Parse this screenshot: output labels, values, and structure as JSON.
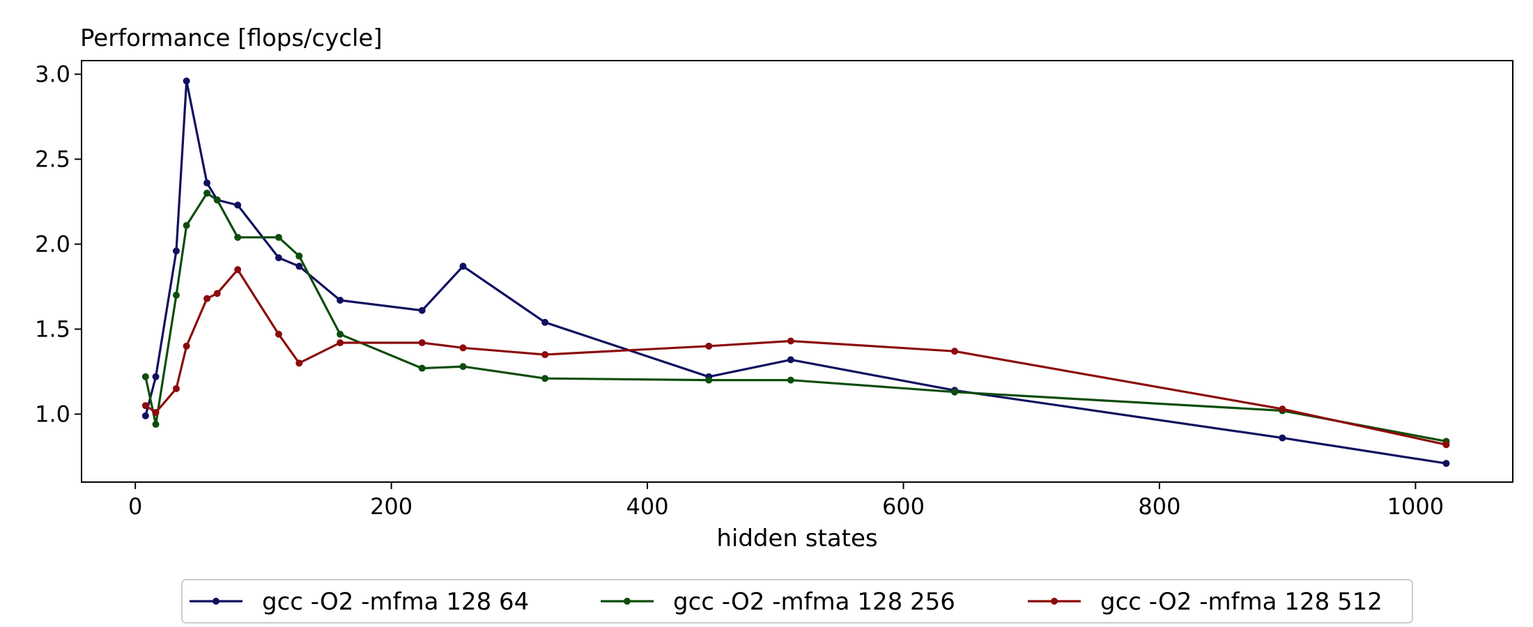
{
  "chart_data": {
    "type": "line",
    "title": "",
    "ylabel": "Performance [flops/cycle]",
    "xlabel": "hidden states",
    "xlim": [
      -42,
      1076
    ],
    "ylim": [
      0.6,
      3.08
    ],
    "xticks": [
      0,
      200,
      400,
      600,
      800,
      1000
    ],
    "yticks": [
      1.0,
      1.5,
      2.0,
      2.5,
      3.0
    ],
    "xtick_labels": [
      "0",
      "200",
      "400",
      "600",
      "800",
      "1000"
    ],
    "ytick_labels": [
      "1.0",
      "1.5",
      "2.0",
      "2.5",
      "3.0"
    ],
    "grid": false,
    "legend_position": "bottom-center",
    "series": [
      {
        "name": "gcc -O2 -mfma 128 64",
        "color": "#0f0f5f",
        "x": [
          8,
          16,
          32,
          40,
          56,
          64,
          80,
          112,
          128,
          160,
          224,
          256,
          320,
          448,
          512,
          640,
          896,
          1024
        ],
        "y": [
          0.99,
          1.22,
          1.96,
          2.96,
          2.36,
          2.26,
          2.23,
          1.92,
          1.87,
          1.67,
          1.61,
          1.87,
          1.54,
          1.22,
          1.32,
          1.14,
          0.86,
          0.71
        ]
      },
      {
        "name": "gcc -O2 -mfma 128 256",
        "color": "#0d4d0d",
        "x": [
          8,
          16,
          32,
          40,
          56,
          64,
          80,
          112,
          128,
          160,
          224,
          256,
          320,
          448,
          512,
          640,
          896,
          1024
        ],
        "y": [
          1.22,
          0.94,
          1.7,
          2.11,
          2.3,
          2.26,
          2.04,
          2.04,
          1.93,
          1.47,
          1.27,
          1.28,
          1.21,
          1.2,
          1.2,
          1.13,
          1.02,
          0.84
        ]
      },
      {
        "name": "gcc -O2 -mfma 128 512",
        "color": "#8b0b0b",
        "x": [
          8,
          16,
          32,
          40,
          56,
          64,
          80,
          112,
          128,
          160,
          224,
          256,
          320,
          448,
          512,
          640,
          896,
          1024
        ],
        "y": [
          1.05,
          1.01,
          1.15,
          1.4,
          1.68,
          1.71,
          1.85,
          1.47,
          1.3,
          1.42,
          1.42,
          1.39,
          1.35,
          1.4,
          1.43,
          1.37,
          1.03,
          0.82
        ]
      }
    ]
  }
}
